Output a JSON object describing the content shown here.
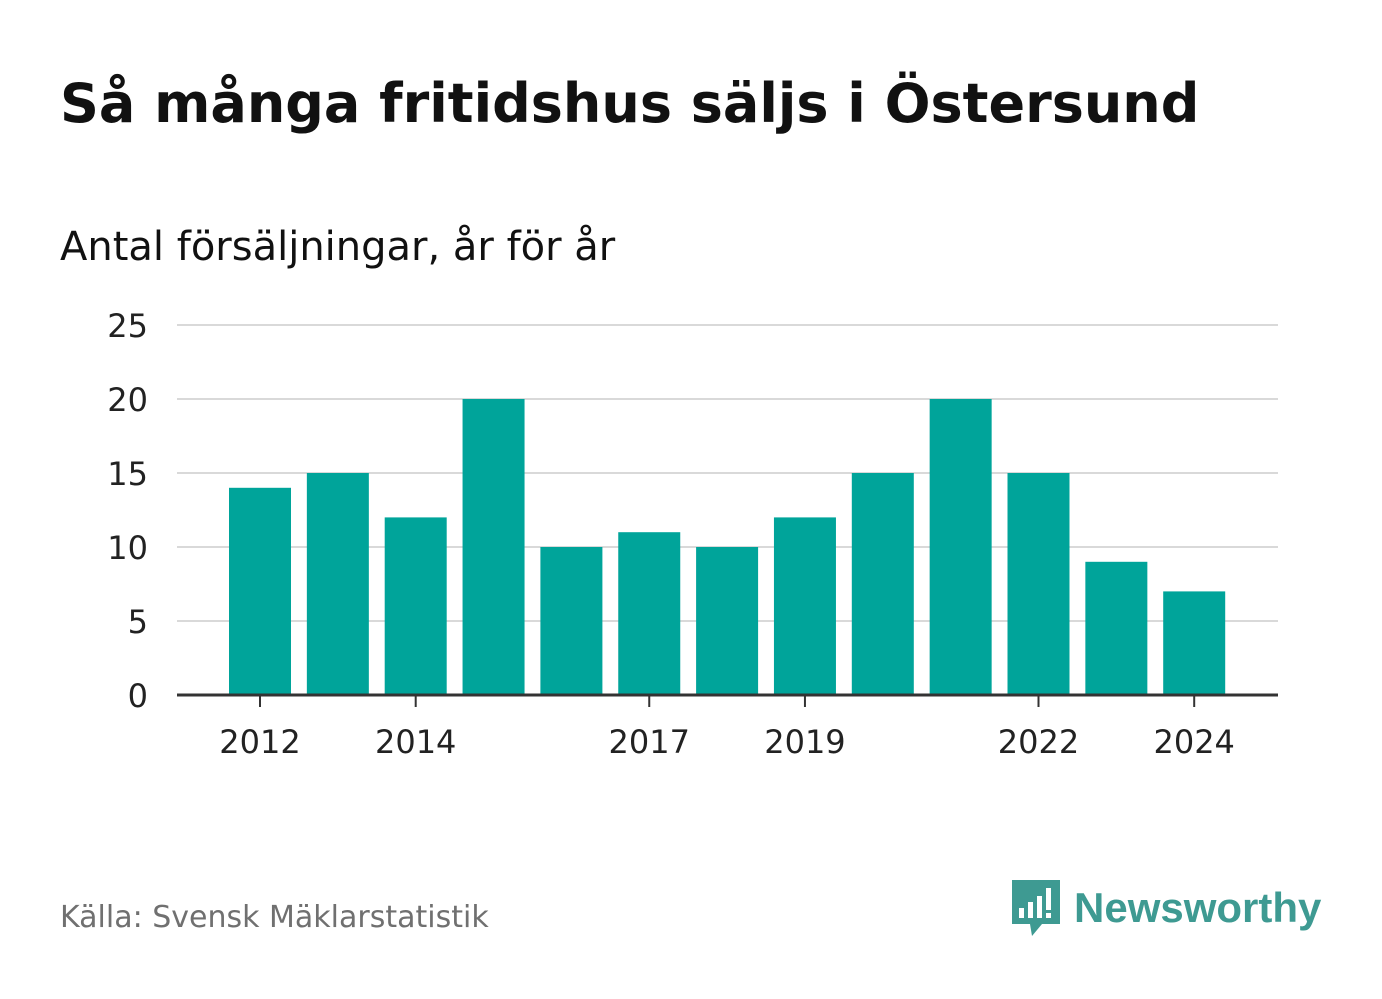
{
  "header": {
    "title": "Så många fritidshus säljs i Östersund",
    "subtitle": "Antal försäljningar, år för år"
  },
  "footer": {
    "source": "Källa: Svensk Mäklarstatistik",
    "brand": "Newsworthy",
    "brand_icon": "newsworthy-logo-icon"
  },
  "colors": {
    "bar": "#00a49a",
    "grid": "#d9d9d9",
    "axis": "#333333",
    "brand": "#3e9a92"
  },
  "chart_data": {
    "type": "bar",
    "x": [
      2012,
      2013,
      2014,
      2015,
      2016,
      2017,
      2018,
      2019,
      2020,
      2021,
      2022,
      2023,
      2024
    ],
    "values": [
      14,
      15,
      12,
      20,
      10,
      11,
      10,
      12,
      15,
      20,
      15,
      9,
      7
    ],
    "xticks": [
      2012,
      2014,
      2017,
      2019,
      2022,
      2024
    ],
    "yticks": [
      0,
      5,
      10,
      15,
      20,
      25
    ],
    "ylim": [
      0,
      25
    ],
    "title": "Så många fritidshus säljs i Östersund",
    "subtitle": "Antal försäljningar, år för år",
    "xlabel": "",
    "ylabel": "",
    "grid": true,
    "legend": "none"
  }
}
